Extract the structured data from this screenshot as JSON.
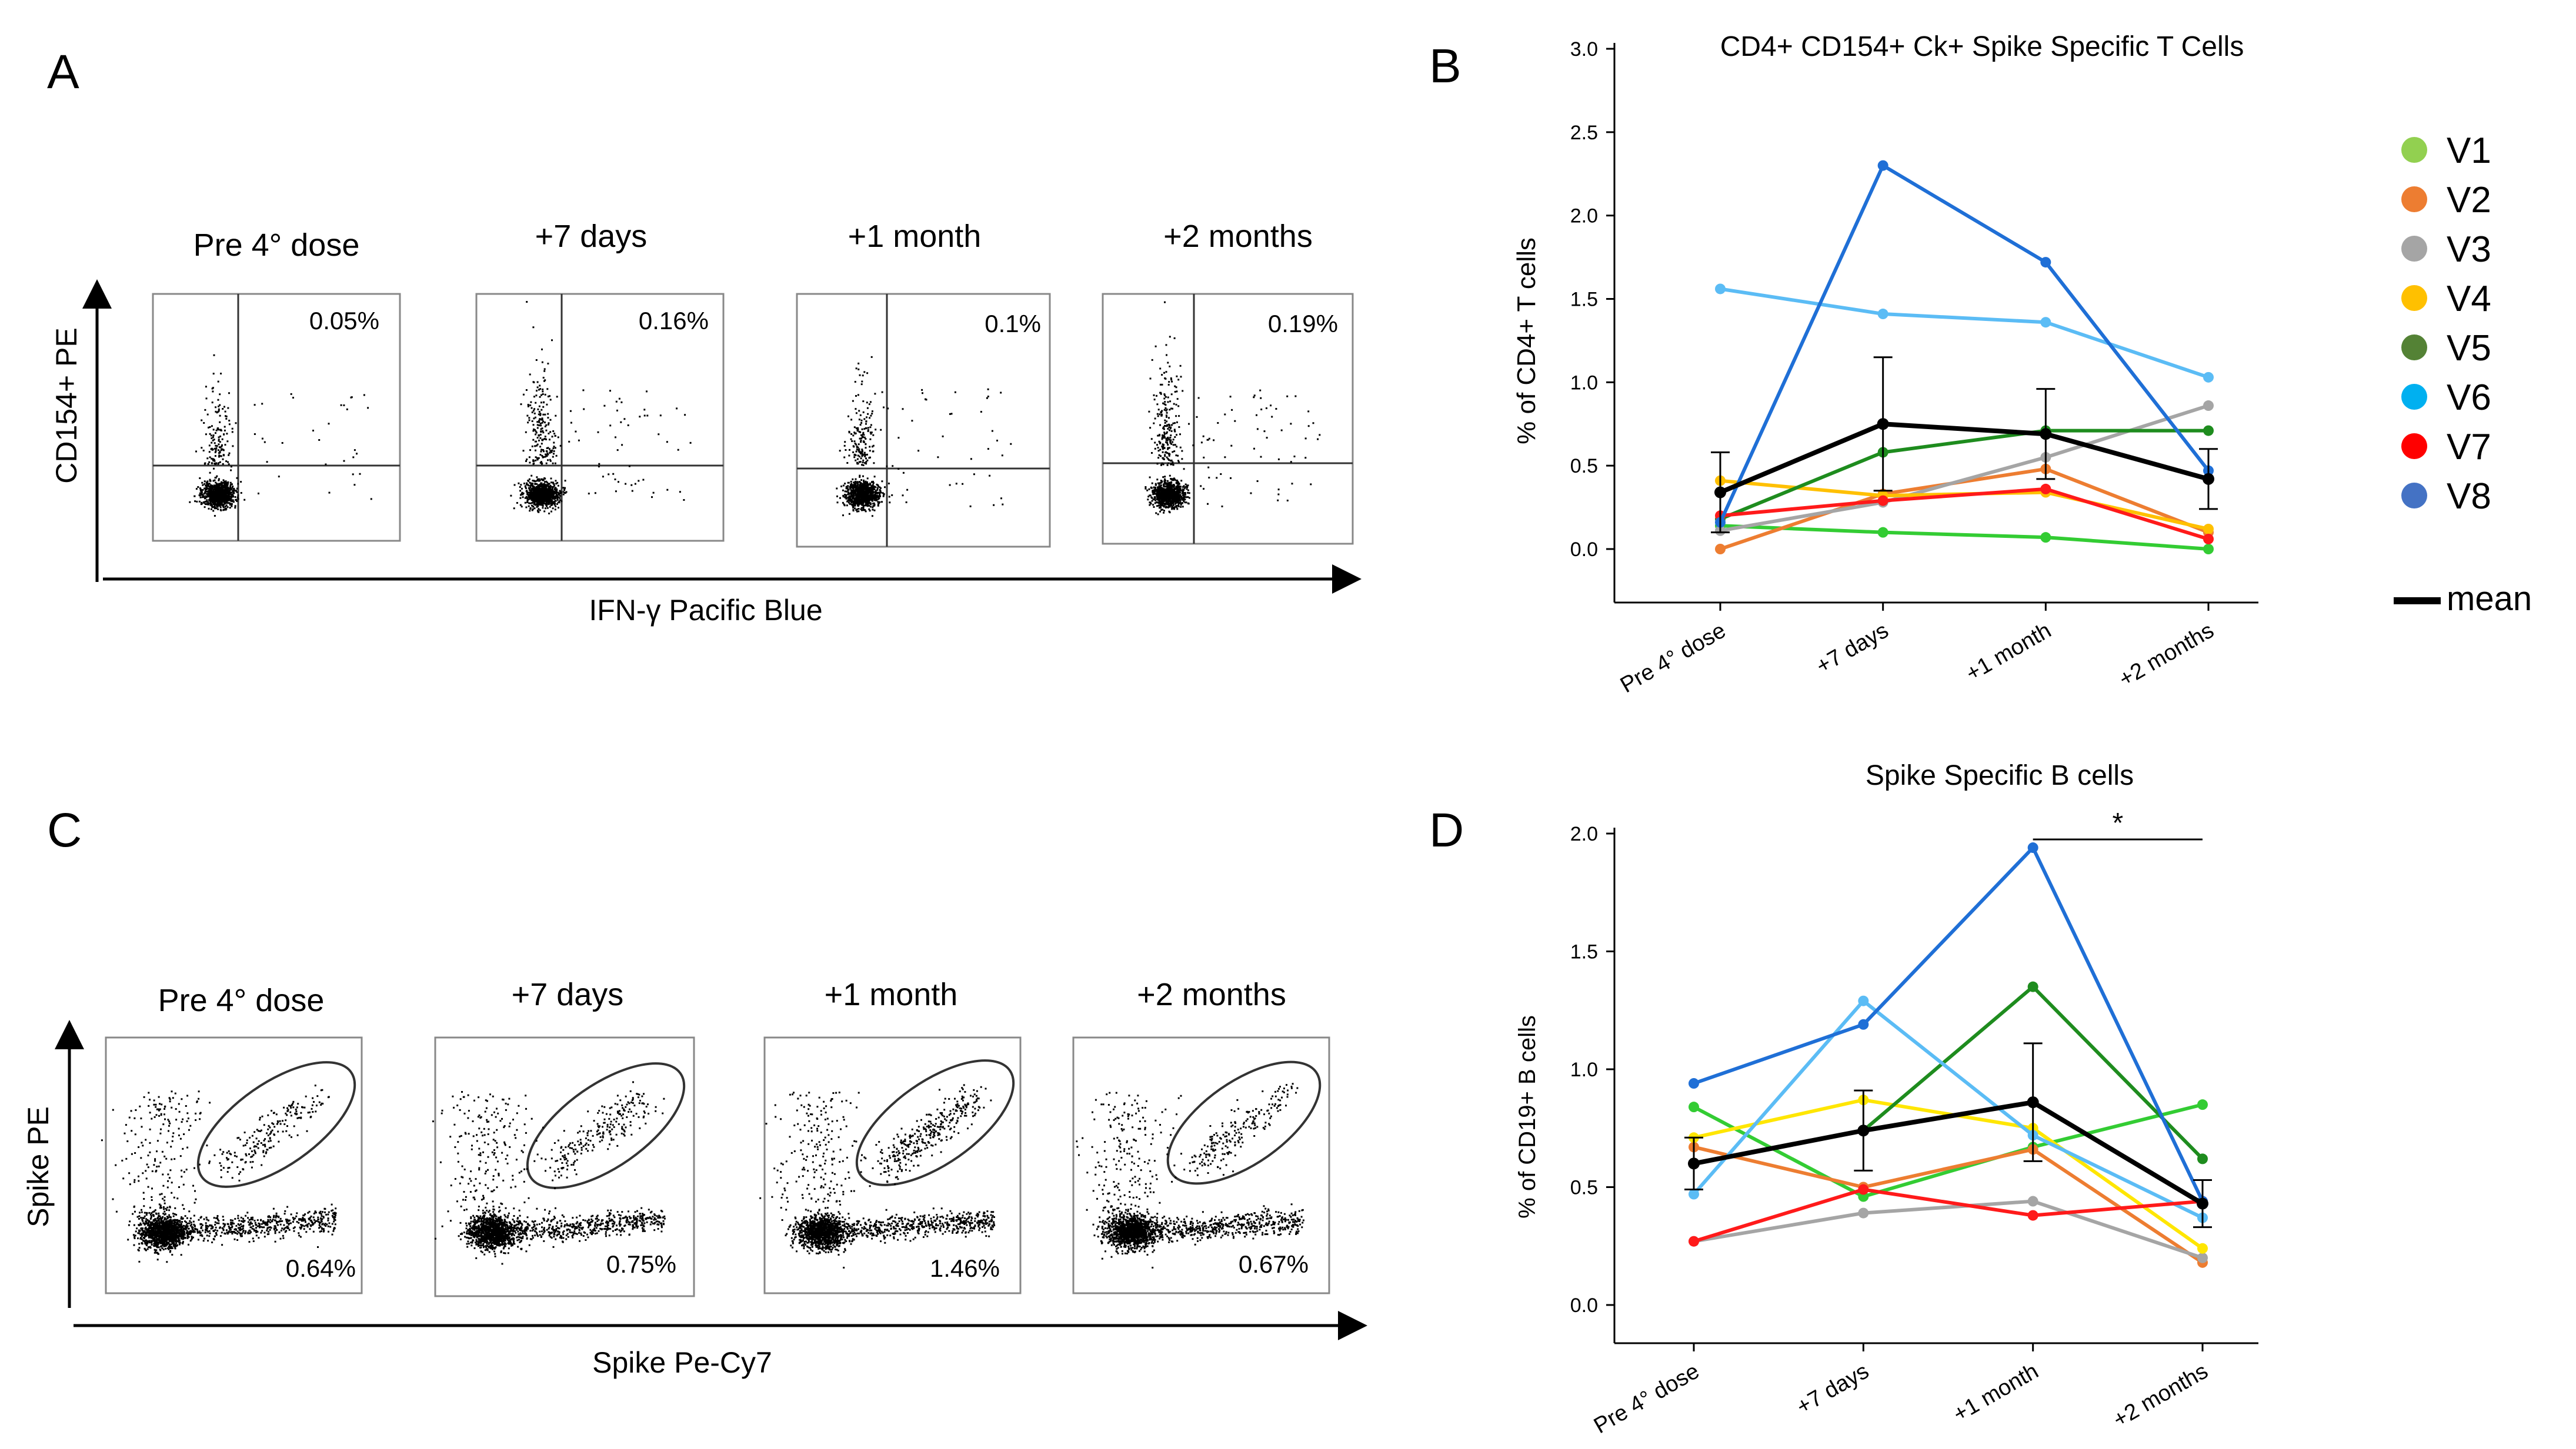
{
  "panels": {
    "A": {
      "letter": "A",
      "x_axis_label": "IFN-γ Pacific Blue",
      "y_axis_label": "CD154+ PE",
      "plots": [
        {
          "title": "Pre 4° dose",
          "percent": "0.05%",
          "frac": 0.12
        },
        {
          "title": "+7 days",
          "percent": "0.16%",
          "frac": 0.35
        },
        {
          "title": "+1 month",
          "percent": "0.1%",
          "frac": 0.22
        },
        {
          "title": "+2 months",
          "percent": "0.19%",
          "frac": 0.42
        }
      ]
    },
    "C": {
      "letter": "C",
      "x_axis_label": "Spike Pe-Cy7",
      "y_axis_label": "Spike PE",
      "plots": [
        {
          "title": "Pre 4° dose",
          "percent": "0.64%",
          "frac": 0.45
        },
        {
          "title": "+7 days",
          "percent": "0.75%",
          "frac": 0.55
        },
        {
          "title": "+1 month",
          "percent": "1.46%",
          "frac": 0.9
        },
        {
          "title": "+2 months",
          "percent": "0.67%",
          "frac": 0.5
        }
      ]
    },
    "B": {
      "letter": "B"
    },
    "D": {
      "letter": "D"
    }
  },
  "legend": {
    "entries": [
      {
        "label": "V1",
        "color": "#92d050"
      },
      {
        "label": "V2",
        "color": "#ed7d31"
      },
      {
        "label": "V3",
        "color": "#a5a5a5"
      },
      {
        "label": "V4",
        "color": "#ffc000"
      },
      {
        "label": "V5",
        "color": "#548235"
      },
      {
        "label": "V6",
        "color": "#00b0f0"
      },
      {
        "label": "V7",
        "color": "#ff0000"
      },
      {
        "label": "V8",
        "color": "#4472c4"
      }
    ],
    "mean_label": "mean"
  },
  "chart_data": [
    {
      "id": "B",
      "type": "line",
      "title": "CD4+ CD154+ Ck+ Spike Specific T Cells",
      "xlabel": "",
      "ylabel": "% of CD4+ T cells",
      "categories": [
        "Pre 4° dose",
        "+7 days",
        "+1 month",
        "+2 months"
      ],
      "ylim": [
        0,
        3.0
      ],
      "yticks": [
        "0.0",
        "0.5",
        "1.0",
        "1.5",
        "2.0",
        "2.5",
        "3.0"
      ],
      "series": [
        {
          "name": "V1",
          "color": "#33cc33",
          "values": [
            0.14,
            0.1,
            0.07,
            0.0
          ]
        },
        {
          "name": "V2",
          "color": "#ed7d31",
          "values": [
            0.0,
            0.33,
            0.48,
            0.1
          ]
        },
        {
          "name": "V3",
          "color": "#a5a5a5",
          "values": [
            0.11,
            0.28,
            0.55,
            0.86
          ]
        },
        {
          "name": "V4",
          "color": "#ffc000",
          "values": [
            0.41,
            0.32,
            0.34,
            0.12
          ]
        },
        {
          "name": "V5",
          "color": "#1e8c1e",
          "values": [
            0.18,
            0.58,
            0.71,
            0.71
          ]
        },
        {
          "name": "V6",
          "color": "#5bbcf5",
          "values": [
            1.56,
            1.41,
            1.36,
            1.03
          ]
        },
        {
          "name": "V7",
          "color": "#ff1a1a",
          "values": [
            0.2,
            0.29,
            0.36,
            0.06
          ]
        },
        {
          "name": "V8",
          "color": "#1f6fd6",
          "values": [
            0.16,
            2.3,
            1.72,
            0.47
          ]
        }
      ],
      "mean": {
        "name": "mean",
        "color": "#000000",
        "values": [
          0.34,
          0.75,
          0.69,
          0.42
        ],
        "errors": [
          0.24,
          0.4,
          0.27,
          0.18
        ]
      },
      "significance": null
    },
    {
      "id": "D",
      "type": "line",
      "title": "Spike Specific B cells",
      "xlabel": "",
      "ylabel": "% of CD19+ B cells",
      "categories": [
        "Pre 4° dose",
        "+7 days",
        "+1 month",
        "+2 months"
      ],
      "ylim": [
        0,
        2.0
      ],
      "yticks": [
        "0.0",
        "0.5",
        "1.0",
        "1.5",
        "2.0"
      ],
      "series": [
        {
          "name": "V1",
          "color": "#33cc33",
          "values": [
            0.84,
            0.46,
            0.67,
            0.85
          ]
        },
        {
          "name": "V2",
          "color": "#ed7d31",
          "values": [
            0.67,
            0.5,
            0.66,
            0.18
          ]
        },
        {
          "name": "V3",
          "color": "#a5a5a5",
          "values": [
            0.27,
            0.39,
            0.44,
            0.2
          ]
        },
        {
          "name": "V4",
          "color": "#ffe600",
          "values": [
            0.71,
            0.87,
            0.75,
            0.24
          ]
        },
        {
          "name": "V5",
          "color": "#1e8c1e",
          "values": [
            0.6,
            0.74,
            1.35,
            0.62
          ]
        },
        {
          "name": "V6",
          "color": "#5bbcf5",
          "values": [
            0.47,
            1.29,
            0.72,
            0.37
          ]
        },
        {
          "name": "V7",
          "color": "#ff1a1a",
          "values": [
            0.27,
            0.49,
            0.38,
            0.44
          ]
        },
        {
          "name": "V8",
          "color": "#1f6fd6",
          "values": [
            0.94,
            1.19,
            1.94,
            0.44
          ]
        }
      ],
      "mean": {
        "name": "mean",
        "color": "#000000",
        "values": [
          0.6,
          0.74,
          0.86,
          0.43
        ],
        "errors": [
          0.11,
          0.17,
          0.25,
          0.1
        ]
      },
      "significance": {
        "from": 2,
        "to": 3,
        "label": "*"
      }
    }
  ]
}
